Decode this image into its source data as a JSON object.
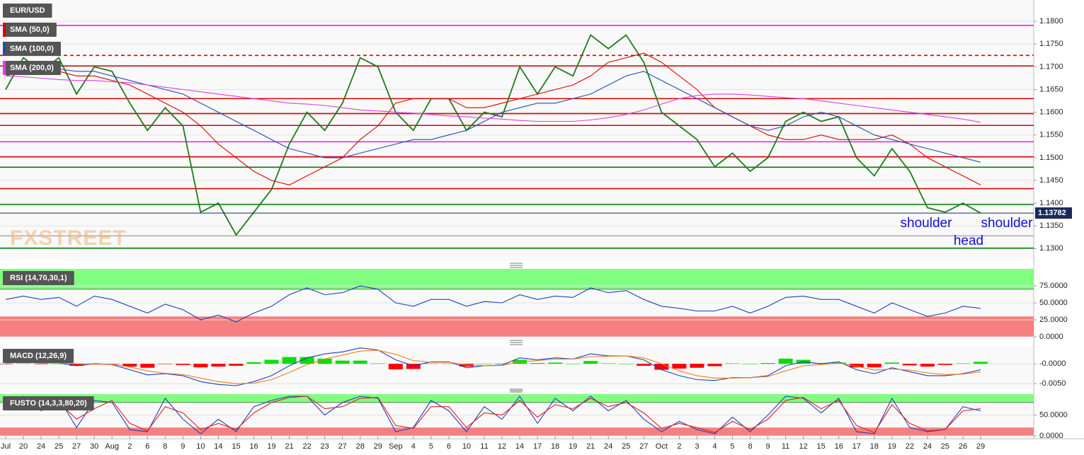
{
  "chart_data": [
    {
      "type": "line",
      "categories": [
        "Jul",
        "20",
        "24",
        "25",
        "27",
        "30",
        "Aug",
        "2",
        "6",
        "8",
        "9",
        "10",
        "14",
        "15",
        "16",
        "19",
        "21",
        "22",
        "23",
        "27",
        "28",
        "29",
        "Sep",
        "4",
        "5",
        "6",
        "10",
        "11",
        "12",
        "14",
        "17",
        "18",
        "19",
        "21",
        "24",
        "25",
        "27",
        "Oct",
        "2",
        "3",
        "4",
        "5",
        "8",
        "9",
        "11",
        "12",
        "15",
        "16",
        "17",
        "18",
        "19",
        "22",
        "24",
        "25",
        "26",
        "29"
      ],
      "series": [
        {
          "name": "EUR/USD",
          "color": "#1f7a1f",
          "values": [
            1.165,
            1.172,
            1.169,
            1.172,
            1.164,
            1.17,
            1.169,
            1.162,
            1.156,
            1.161,
            1.157,
            1.138,
            1.14,
            1.133,
            1.138,
            1.143,
            1.153,
            1.16,
            1.156,
            1.162,
            1.172,
            1.17,
            1.16,
            1.156,
            1.163,
            1.163,
            1.156,
            1.16,
            1.159,
            1.17,
            1.164,
            1.17,
            1.168,
            1.177,
            1.174,
            1.177,
            1.171,
            1.16,
            1.157,
            1.154,
            1.148,
            1.151,
            1.147,
            1.15,
            1.158,
            1.16,
            1.158,
            1.159,
            1.15,
            1.146,
            1.152,
            1.147,
            1.139,
            1.138,
            1.14,
            1.1378
          ]
        },
        {
          "name": "SMA (50,0)",
          "color": "#e00000",
          "values": [
            1.168,
            1.169,
            1.169,
            1.169,
            1.168,
            1.168,
            1.167,
            1.166,
            1.164,
            1.162,
            1.16,
            1.157,
            1.153,
            1.15,
            1.147,
            1.145,
            1.144,
            1.146,
            1.148,
            1.15,
            1.154,
            1.157,
            1.162,
            1.163,
            1.163,
            1.163,
            1.161,
            1.161,
            1.162,
            1.163,
            1.164,
            1.165,
            1.166,
            1.168,
            1.171,
            1.172,
            1.173,
            1.171,
            1.168,
            1.165,
            1.161,
            1.159,
            1.157,
            1.155,
            1.154,
            1.154,
            1.155,
            1.154,
            1.154,
            1.154,
            1.155,
            1.153,
            1.15,
            1.148,
            1.146,
            1.144
          ]
        },
        {
          "name": "SMA (100,0)",
          "color": "#2050b0",
          "values": [
            1.17,
            1.17,
            1.17,
            1.1695,
            1.169,
            1.169,
            1.168,
            1.167,
            1.166,
            1.165,
            1.164,
            1.162,
            1.16,
            1.158,
            1.156,
            1.154,
            1.152,
            1.151,
            1.15,
            1.15,
            1.151,
            1.152,
            1.153,
            1.154,
            1.154,
            1.155,
            1.156,
            1.158,
            1.16,
            1.161,
            1.162,
            1.162,
            1.163,
            1.164,
            1.166,
            1.168,
            1.169,
            1.167,
            1.165,
            1.163,
            1.161,
            1.159,
            1.157,
            1.156,
            1.157,
            1.159,
            1.16,
            1.159,
            1.157,
            1.155,
            1.154,
            1.153,
            1.152,
            1.151,
            1.15,
            1.149
          ]
        },
        {
          "name": "SMA (200,0)",
          "color": "#e040e0",
          "values": [
            1.168,
            1.1678,
            1.1675,
            1.1672,
            1.167,
            1.167,
            1.1667,
            1.1665,
            1.166,
            1.1655,
            1.165,
            1.1645,
            1.164,
            1.1635,
            1.163,
            1.1625,
            1.162,
            1.1618,
            1.1615,
            1.161,
            1.1605,
            1.1603,
            1.16,
            1.1598,
            1.1595,
            1.1592,
            1.159,
            1.1587,
            1.1585,
            1.1582,
            1.158,
            1.158,
            1.158,
            1.1583,
            1.1588,
            1.1595,
            1.1605,
            1.1618,
            1.163,
            1.1637,
            1.164,
            1.164,
            1.1638,
            1.1635,
            1.1632,
            1.163,
            1.1625,
            1.162,
            1.1615,
            1.161,
            1.1605,
            1.16,
            1.1595,
            1.159,
            1.1585,
            1.1578
          ]
        }
      ],
      "levels": [
        {
          "value": 1.1791,
          "color": "#e020e0"
        },
        {
          "value": 1.1725,
          "color": "#e00000",
          "dashed": true
        },
        {
          "value": 1.1702,
          "color": "#e00000"
        },
        {
          "value": 1.163,
          "color": "#e00000"
        },
        {
          "value": 1.1597,
          "color": "#e00000"
        },
        {
          "value": 1.1571,
          "color": "#e00000"
        },
        {
          "value": 1.1535,
          "color": "#e020e0"
        },
        {
          "value": 1.1502,
          "color": "#e00000"
        },
        {
          "value": 1.1479,
          "color": "#008000"
        },
        {
          "value": 1.1432,
          "color": "#e00000"
        },
        {
          "value": 1.1397,
          "color": "#008000"
        },
        {
          "value": 1.1328,
          "color": "#b0b0b0"
        },
        {
          "value": 1.1301,
          "color": "#008000"
        }
      ],
      "last_price": 1.13782,
      "last_price_color": "#1c2a5a",
      "ylim": [
        1.1274,
        1.1847
      ],
      "yticks": [
        {
          "value": 1.13,
          "label": "1.1300"
        },
        {
          "value": 1.135,
          "label": "1.1350"
        },
        {
          "value": 1.14,
          "label": "1.1400"
        },
        {
          "value": 1.145,
          "label": "1.1450"
        },
        {
          "value": 1.15,
          "label": "1.1500"
        },
        {
          "value": 1.155,
          "label": "1.1550"
        },
        {
          "value": 1.16,
          "label": "1.1600"
        },
        {
          "value": 1.165,
          "label": "1.1650"
        },
        {
          "value": 1.17,
          "label": "1.1700"
        },
        {
          "value": 1.175,
          "label": "1.1750"
        },
        {
          "value": 1.18,
          "label": "1.1800"
        }
      ],
      "grid": true,
      "annotations": [
        "shoulder",
        "head",
        "shoulder"
      ],
      "watermark": "FXSTREET"
    },
    {
      "type": "line",
      "title": "RSI (14,70,30,1)",
      "series": [
        {
          "color": "#2040c0",
          "values": [
            55,
            60,
            55,
            58,
            45,
            60,
            55,
            45,
            35,
            48,
            40,
            25,
            32,
            22,
            35,
            45,
            62,
            72,
            62,
            65,
            75,
            70,
            50,
            45,
            55,
            55,
            45,
            52,
            50,
            62,
            55,
            60,
            58,
            72,
            65,
            68,
            55,
            45,
            42,
            38,
            38,
            45,
            35,
            45,
            58,
            60,
            55,
            55,
            45,
            35,
            50,
            40,
            30,
            35,
            45,
            42
          ]
        }
      ],
      "bands": [
        {
          "from": 70,
          "to": 100,
          "color": "#80ff80"
        },
        {
          "from": 0,
          "to": 30,
          "color": "#f58080"
        }
      ],
      "ylim": [
        0,
        100
      ],
      "yticks": [
        {
          "value": 75,
          "label": "75.0000"
        },
        {
          "value": 50,
          "label": "50.0000"
        },
        {
          "value": 25,
          "label": "25.0000"
        },
        {
          "value": 0,
          "label": "0.0000"
        }
      ],
      "grid": true
    },
    {
      "type": "macd",
      "title": "MACD (12,26,9)",
      "series": [
        {
          "color": "#2040c0",
          "values": [
            0.0002,
            0.0004,
            0.0002,
            0.0002,
            -0.0005,
            0.0,
            -0.0002,
            -0.0015,
            -0.0028,
            -0.0025,
            -0.003,
            -0.0045,
            -0.0052,
            -0.0055,
            -0.0045,
            -0.003,
            -0.0005,
            0.0015,
            0.0025,
            0.003,
            0.004,
            0.0035,
            0.001,
            -0.0005,
            0.0005,
            0.0005,
            -0.001,
            -0.0005,
            -0.0003,
            0.0015,
            0.001,
            0.0015,
            0.0012,
            0.0025,
            0.002,
            0.002,
            0.001,
            -0.0015,
            -0.003,
            -0.004,
            -0.0042,
            -0.0035,
            -0.0035,
            -0.003,
            -0.0005,
            0.0005,
            0.0,
            0.0005,
            -0.0015,
            -0.0025,
            -0.001,
            -0.002,
            -0.003,
            -0.003,
            -0.0025,
            -0.0015
          ]
        },
        {
          "color": "#f08020",
          "values": [
            0.0003,
            0.0003,
            0.0003,
            0.0002,
            0.0,
            -0.0001,
            -0.0001,
            -0.0008,
            -0.0018,
            -0.0024,
            -0.0027,
            -0.0036,
            -0.0045,
            -0.005,
            -0.0049,
            -0.004,
            -0.0022,
            -0.0002,
            0.0012,
            0.0022,
            0.0032,
            0.0034,
            0.0024,
            0.0008,
            0.0004,
            0.0004,
            -0.0003,
            -0.0005,
            -0.0004,
            0.0005,
            0.0008,
            0.0012,
            0.0012,
            0.0018,
            0.0019,
            0.002,
            0.0015,
            0.0,
            -0.0018,
            -0.003,
            -0.0036,
            -0.0036,
            -0.0035,
            -0.0032,
            -0.0018,
            -0.0005,
            -0.0002,
            0.0002,
            -0.0006,
            -0.0016,
            -0.0013,
            -0.0016,
            -0.0023,
            -0.0027,
            -0.0026,
            -0.002
          ]
        }
      ],
      "histogram": {
        "up_color": "#00e000",
        "down_color": "#ff0000",
        "values": [
          -0.0001,
          0.0001,
          -0.0001,
          0.0,
          -0.0005,
          0.0001,
          -0.0001,
          -0.0007,
          -0.001,
          -0.0001,
          -0.0003,
          -0.0009,
          -0.0007,
          -0.0005,
          0.0004,
          0.001,
          0.0017,
          0.0017,
          0.0013,
          0.0008,
          0.0008,
          0.0001,
          -0.0014,
          -0.0013,
          0.0001,
          0.0001,
          -0.0007,
          0.0,
          0.0001,
          0.001,
          0.0002,
          0.0003,
          0.0,
          0.0007,
          0.0001,
          0.0,
          -0.0005,
          -0.0015,
          -0.0012,
          -0.001,
          -0.0006,
          0.0001,
          0.0,
          0.0002,
          0.0013,
          0.001,
          0.0002,
          0.0003,
          -0.0009,
          -0.0009,
          0.0003,
          -0.0004,
          -0.0007,
          -0.0003,
          0.0001,
          0.0005
        ]
      },
      "ylim": [
        -0.0064,
        0.0043
      ],
      "yticks": [
        {
          "value": 0,
          "label": "-0.0000"
        },
        {
          "value": -0.005,
          "label": "-0.0050"
        }
      ],
      "grid": true
    },
    {
      "type": "line",
      "title": "FUSTO (14,3,3,80,20)",
      "series": [
        {
          "color": "#2040c0",
          "values": [
            70,
            95,
            60,
            90,
            20,
            85,
            80,
            15,
            10,
            90,
            40,
            5,
            40,
            10,
            70,
            85,
            95,
            95,
            50,
            80,
            95,
            90,
            10,
            20,
            85,
            60,
            10,
            70,
            40,
            95,
            30,
            90,
            60,
            95,
            60,
            85,
            40,
            10,
            35,
            15,
            5,
            45,
            10,
            50,
            95,
            90,
            55,
            90,
            10,
            5,
            90,
            20,
            10,
            15,
            70,
            60
          ]
        },
        {
          "color": "#e02020",
          "values": [
            75,
            85,
            75,
            80,
            40,
            65,
            85,
            30,
            12,
            70,
            55,
            15,
            30,
            15,
            55,
            80,
            92,
            95,
            65,
            70,
            90,
            92,
            25,
            18,
            70,
            70,
            20,
            55,
            50,
            85,
            45,
            75,
            65,
            90,
            70,
            80,
            55,
            18,
            30,
            20,
            8,
            35,
            15,
            40,
            85,
            92,
            65,
            85,
            25,
            8,
            75,
            30,
            12,
            15,
            60,
            65
          ]
        }
      ],
      "bands": [
        {
          "from": 80,
          "to": 100,
          "color": "#80ff80"
        },
        {
          "from": 0,
          "to": 20,
          "color": "#f58080"
        }
      ],
      "ylim": [
        0,
        100
      ],
      "yticks": [
        {
          "value": 50,
          "label": "50.0000"
        },
        {
          "value": 0,
          "label": "0.0000"
        }
      ],
      "grid": true
    }
  ]
}
